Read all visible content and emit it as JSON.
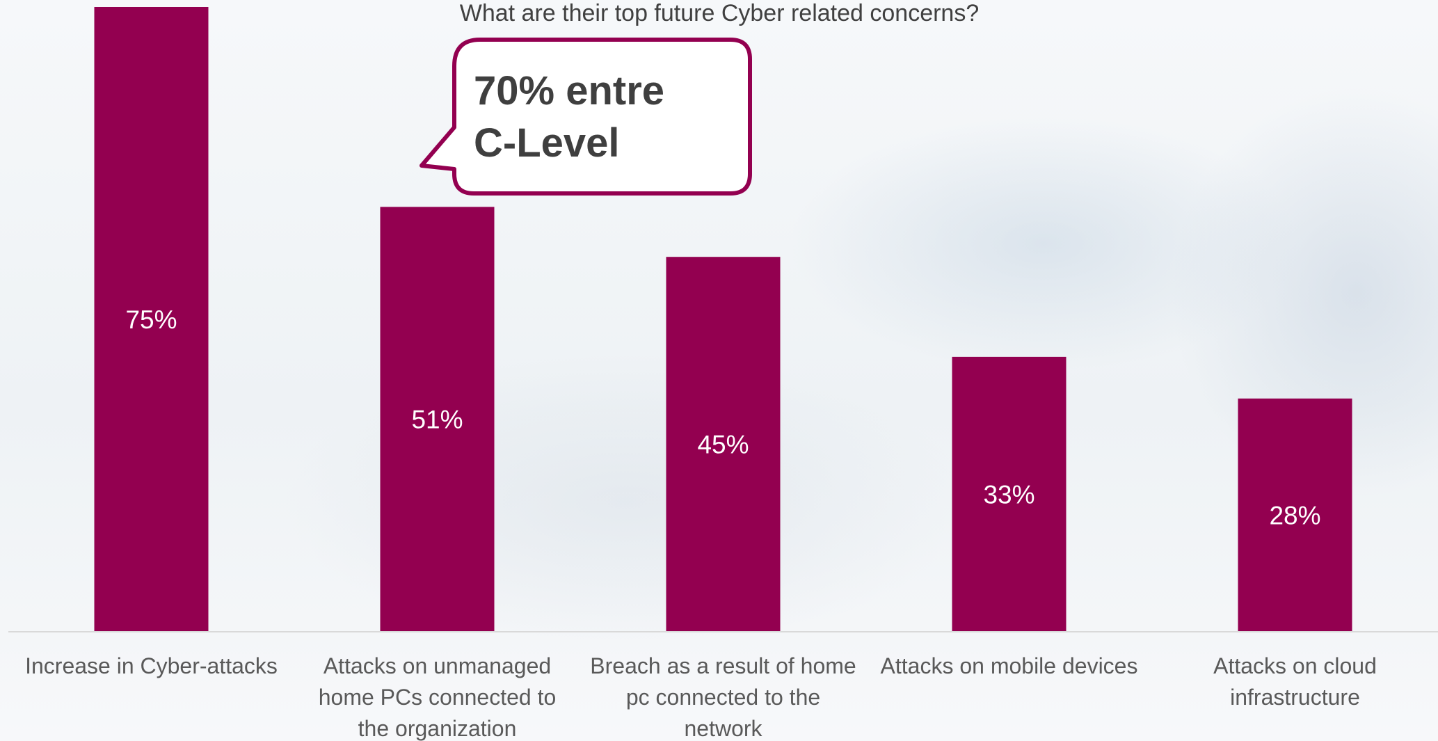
{
  "chart_data": {
    "type": "bar",
    "title": "What are their top future Cyber related concerns?",
    "categories": [
      [
        "Increase in Cyber-attacks"
      ],
      [
        "Attacks on unmanaged",
        "home PCs connected to",
        "the organization"
      ],
      [
        "Breach as a result of home",
        "pc connected to the",
        "network"
      ],
      [
        "Attacks on mobile devices"
      ],
      [
        "Attacks on cloud",
        "infrastructure"
      ]
    ],
    "values": [
      75,
      51,
      45,
      33,
      28
    ],
    "value_labels": [
      "75%",
      "51%",
      "45%",
      "33%",
      "28%"
    ],
    "ylim": [
      0,
      75
    ],
    "grid": false,
    "legend": "none",
    "bar_color": "#930050",
    "annotation": {
      "lines": [
        "70% entre",
        "C-Level"
      ],
      "attached_to": "Attacks on unmanaged home PCs connected to the organization"
    }
  }
}
